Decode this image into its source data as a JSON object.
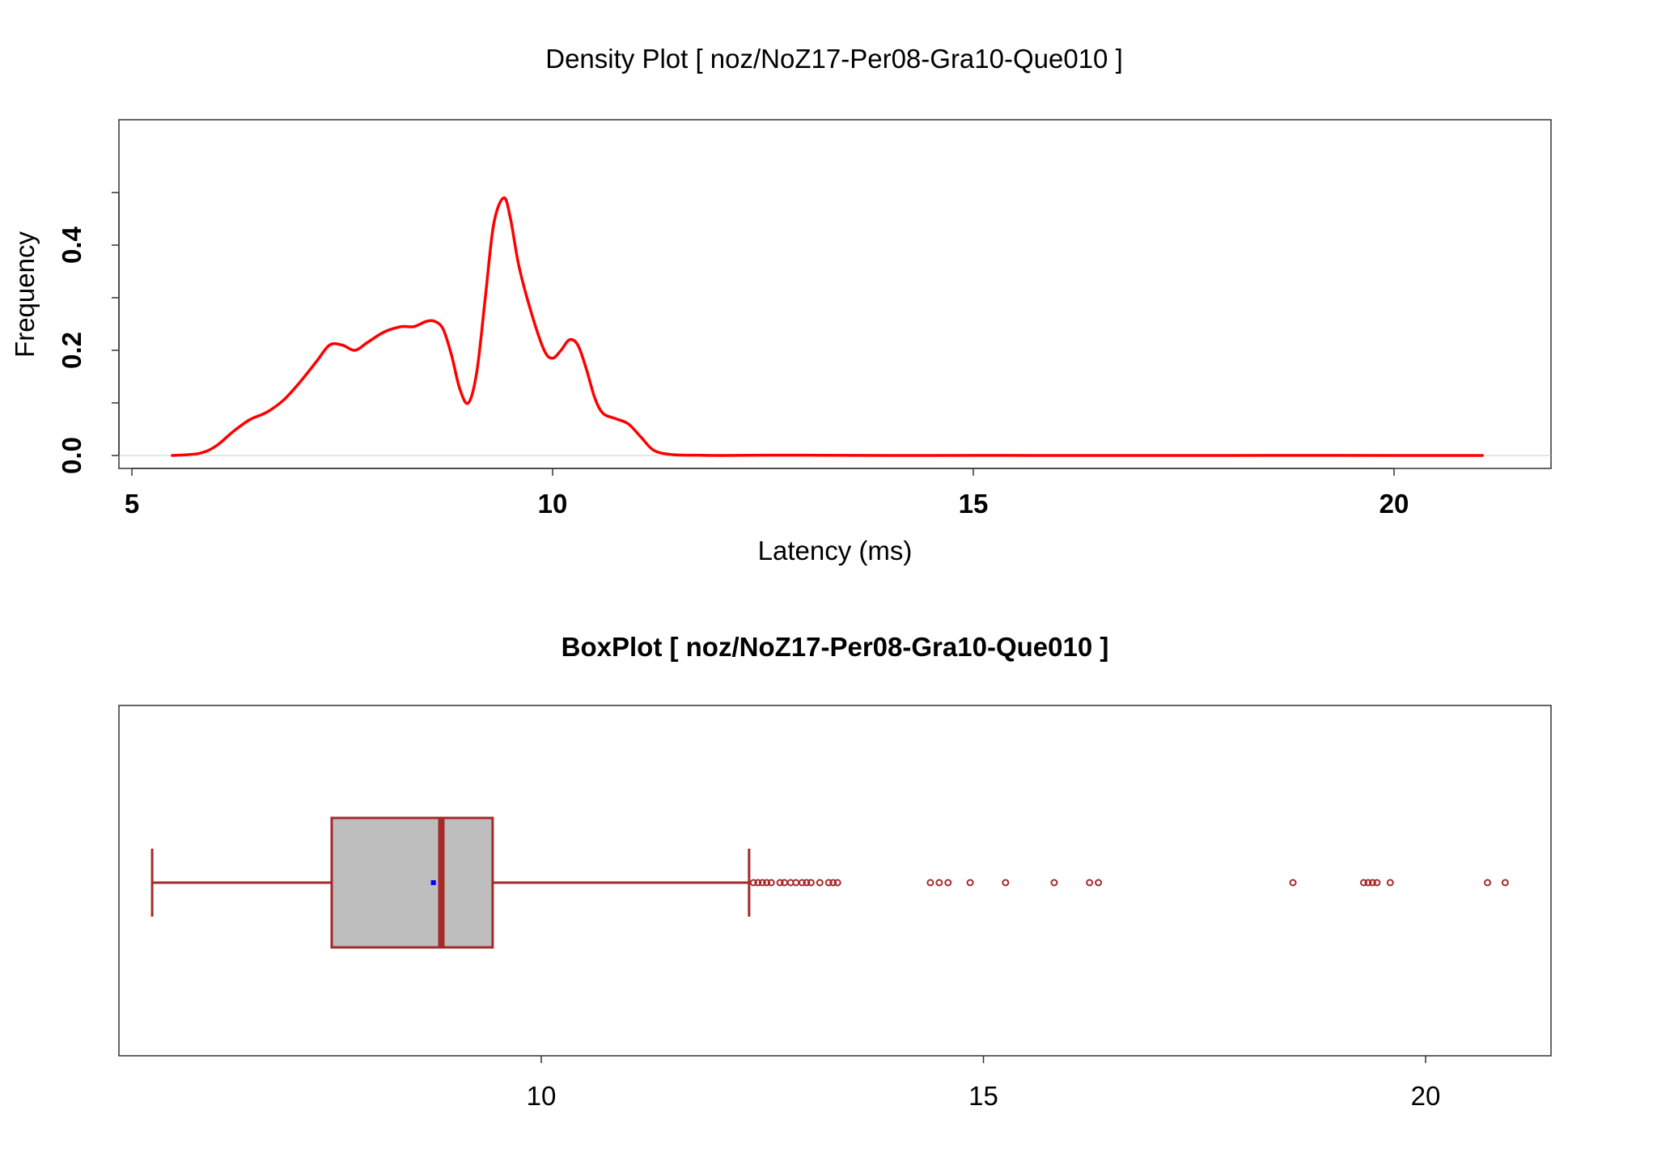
{
  "chart_data": [
    {
      "type": "line",
      "title": "Density Plot [ noz/NoZ17-Per08-Gra10-Que010 ]",
      "xlabel": "Latency (ms)",
      "ylabel": "Frequency",
      "xlim": [
        5,
        21.2
      ],
      "ylim": [
        0,
        0.5
      ],
      "xticks": [
        5,
        10,
        15,
        20
      ],
      "xtick_labels": [
        "5",
        "10",
        "15",
        "20"
      ],
      "yticks": [
        0.0,
        0.1,
        0.2,
        0.3,
        0.4,
        0.5
      ],
      "ytick_labels": [
        "0.0",
        "",
        "0.2",
        "",
        "0.4",
        ""
      ],
      "grid": false,
      "legend": "none",
      "line_color": "#ff0000",
      "series": [
        {
          "x": [
            5.48,
            5.8,
            6.0,
            6.2,
            6.4,
            6.6,
            6.8,
            7.0,
            7.2,
            7.35,
            7.5,
            7.65,
            7.8,
            8.0,
            8.2,
            8.35,
            8.5,
            8.6,
            8.7,
            8.8,
            8.9,
            9.0,
            9.1,
            9.2,
            9.3,
            9.42,
            9.5,
            9.6,
            9.75,
            9.9,
            10.0,
            10.1,
            10.2,
            10.3,
            10.4,
            10.5,
            10.6,
            10.75,
            10.9,
            11.05,
            11.2,
            11.4,
            11.7,
            12.0,
            12.5,
            13.0,
            14.0,
            15.0,
            16.0,
            17.0,
            18.0,
            19.0,
            20.0,
            21.05
          ],
          "y": [
            0.0,
            0.004,
            0.018,
            0.045,
            0.068,
            0.082,
            0.105,
            0.14,
            0.18,
            0.21,
            0.21,
            0.2,
            0.215,
            0.235,
            0.245,
            0.245,
            0.255,
            0.255,
            0.24,
            0.19,
            0.125,
            0.1,
            0.16,
            0.3,
            0.44,
            0.49,
            0.45,
            0.36,
            0.27,
            0.2,
            0.185,
            0.2,
            0.22,
            0.21,
            0.165,
            0.11,
            0.08,
            0.07,
            0.06,
            0.035,
            0.01,
            0.002,
            0.0005,
            0.0,
            0.0005,
            0.0005,
            0.0,
            0.0002,
            0.0,
            0.0,
            0.0,
            0.0002,
            0.0,
            0.0
          ]
        }
      ]
    },
    {
      "type": "boxplot",
      "title": "BoxPlot [ noz/NoZ17-Per08-Gra10-Que010 ]",
      "xlim": [
        5.2,
        21.5
      ],
      "xticks": [
        10,
        15,
        20
      ],
      "xtick_labels": [
        "10",
        "15",
        "20"
      ],
      "grid": false,
      "legend": "none",
      "box_fill": "#bebebe",
      "box_color": "#a52a2a",
      "mean_color": "#0000ff",
      "whisker_low": 5.6,
      "q1": 7.63,
      "median": 8.87,
      "q3": 9.45,
      "whisker_high": 12.35,
      "mean": 8.78,
      "outliers": [
        12.4,
        12.45,
        12.5,
        12.55,
        12.6,
        12.7,
        12.75,
        12.82,
        12.88,
        12.95,
        13.0,
        13.05,
        13.15,
        13.25,
        13.3,
        13.35,
        14.4,
        14.5,
        14.6,
        14.85,
        15.25,
        15.8,
        16.2,
        16.3,
        18.5,
        19.3,
        19.35,
        19.4,
        19.45,
        19.6,
        20.7,
        20.9
      ]
    }
  ]
}
